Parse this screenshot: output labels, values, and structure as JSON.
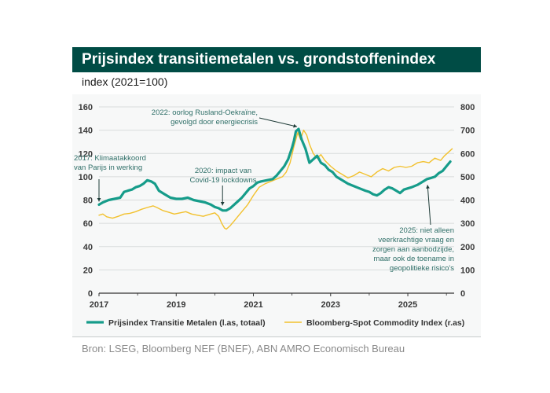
{
  "header": {
    "title": "Prijsindex transitiemetalen vs. grondstoffenindex",
    "subtitle": "index (2021=100)"
  },
  "footer": {
    "source": "Bron: LSEG, Bloomberg NEF (BNEF), ABN AMRO Economisch Bureau"
  },
  "colors": {
    "series_left": "#169c8a",
    "series_right": "#f2c12e",
    "title_bg": "#004c45",
    "annotation": "#2f6f68"
  },
  "chart_data": {
    "type": "line",
    "title": "Prijsindex transitiemetalen vs. grondstoffenindex",
    "ylabel": "index (2021=100)",
    "xlim": [
      2017,
      2026.2
    ],
    "ylim_left": [
      0,
      160
    ],
    "ylim_right": [
      0,
      800
    ],
    "x_ticks": [
      2017,
      2019,
      2021,
      2023,
      2025
    ],
    "x_tick_labels": [
      "2017",
      "2019",
      "2021",
      "2023",
      "2025"
    ],
    "y_left_ticks": [
      0,
      20,
      40,
      60,
      80,
      100,
      120,
      140,
      160
    ],
    "y_left_tick_labels": [
      "0",
      "20",
      "40",
      "60",
      "80",
      "100",
      "120",
      "140",
      "160"
    ],
    "y_right_ticks": [
      0,
      100,
      200,
      300,
      400,
      500,
      600,
      700,
      800
    ],
    "y_right_tick_labels": [
      "0",
      "100",
      "200",
      "300",
      "400",
      "500",
      "600",
      "700",
      "800"
    ],
    "legend_position": "bottom",
    "series": [
      {
        "name": "Prijsindex Transitie Metalen (l.as, totaal)",
        "axis": "left",
        "points": [
          [
            2017.0,
            76
          ],
          [
            2017.1,
            78
          ],
          [
            2017.25,
            80
          ],
          [
            2017.4,
            81
          ],
          [
            2017.55,
            82
          ],
          [
            2017.65,
            87
          ],
          [
            2017.75,
            88
          ],
          [
            2017.85,
            89
          ],
          [
            2017.95,
            91
          ],
          [
            2018.05,
            92
          ],
          [
            2018.15,
            94
          ],
          [
            2018.25,
            97
          ],
          [
            2018.35,
            96
          ],
          [
            2018.45,
            94
          ],
          [
            2018.55,
            88
          ],
          [
            2018.7,
            85
          ],
          [
            2018.85,
            82
          ],
          [
            2019.0,
            81
          ],
          [
            2019.15,
            81
          ],
          [
            2019.3,
            82
          ],
          [
            2019.45,
            80
          ],
          [
            2019.6,
            79
          ],
          [
            2019.75,
            78
          ],
          [
            2019.9,
            76
          ],
          [
            2020.0,
            74
          ],
          [
            2020.1,
            73
          ],
          [
            2020.2,
            71
          ],
          [
            2020.3,
            71
          ],
          [
            2020.4,
            73
          ],
          [
            2020.5,
            76
          ],
          [
            2020.6,
            79
          ],
          [
            2020.7,
            82
          ],
          [
            2020.8,
            86
          ],
          [
            2020.9,
            90
          ],
          [
            2021.0,
            92
          ],
          [
            2021.1,
            95
          ],
          [
            2021.2,
            96
          ],
          [
            2021.35,
            97
          ],
          [
            2021.5,
            98
          ],
          [
            2021.6,
            101
          ],
          [
            2021.7,
            105
          ],
          [
            2021.8,
            109
          ],
          [
            2021.9,
            115
          ],
          [
            2022.0,
            125
          ],
          [
            2022.05,
            131
          ],
          [
            2022.1,
            139
          ],
          [
            2022.17,
            141
          ],
          [
            2022.25,
            132
          ],
          [
            2022.35,
            124
          ],
          [
            2022.45,
            112
          ],
          [
            2022.55,
            115
          ],
          [
            2022.65,
            118
          ],
          [
            2022.75,
            112
          ],
          [
            2022.85,
            110
          ],
          [
            2022.95,
            106
          ],
          [
            2023.05,
            104
          ],
          [
            2023.15,
            100
          ],
          [
            2023.3,
            97
          ],
          [
            2023.45,
            94
          ],
          [
            2023.6,
            92
          ],
          [
            2023.75,
            90
          ],
          [
            2023.9,
            88
          ],
          [
            2024.0,
            87
          ],
          [
            2024.1,
            85
          ],
          [
            2024.2,
            84
          ],
          [
            2024.3,
            86
          ],
          [
            2024.4,
            89
          ],
          [
            2024.5,
            91
          ],
          [
            2024.6,
            90
          ],
          [
            2024.7,
            88
          ],
          [
            2024.8,
            86
          ],
          [
            2024.9,
            89
          ],
          [
            2025.0,
            90
          ],
          [
            2025.1,
            91
          ],
          [
            2025.25,
            93
          ],
          [
            2025.4,
            96
          ],
          [
            2025.5,
            98
          ],
          [
            2025.6,
            99
          ],
          [
            2025.7,
            100
          ],
          [
            2025.8,
            103
          ],
          [
            2025.9,
            105
          ],
          [
            2026.0,
            109
          ],
          [
            2026.1,
            113
          ]
        ]
      },
      {
        "name": "Bloomberg-Spot Commodity Index (r.as)",
        "axis": "right",
        "points": [
          [
            2017.0,
            335
          ],
          [
            2017.1,
            340
          ],
          [
            2017.2,
            328
          ],
          [
            2017.35,
            322
          ],
          [
            2017.5,
            330
          ],
          [
            2017.65,
            340
          ],
          [
            2017.8,
            343
          ],
          [
            2017.95,
            350
          ],
          [
            2018.1,
            360
          ],
          [
            2018.25,
            368
          ],
          [
            2018.4,
            375
          ],
          [
            2018.5,
            368
          ],
          [
            2018.65,
            355
          ],
          [
            2018.8,
            348
          ],
          [
            2018.95,
            340
          ],
          [
            2019.1,
            345
          ],
          [
            2019.25,
            350
          ],
          [
            2019.4,
            340
          ],
          [
            2019.55,
            335
          ],
          [
            2019.7,
            330
          ],
          [
            2019.85,
            338
          ],
          [
            2020.0,
            345
          ],
          [
            2020.1,
            330
          ],
          [
            2020.18,
            300
          ],
          [
            2020.25,
            280
          ],
          [
            2020.3,
            275
          ],
          [
            2020.4,
            290
          ],
          [
            2020.5,
            310
          ],
          [
            2020.6,
            330
          ],
          [
            2020.7,
            350
          ],
          [
            2020.85,
            380
          ],
          [
            2021.0,
            420
          ],
          [
            2021.15,
            455
          ],
          [
            2021.3,
            470
          ],
          [
            2021.45,
            480
          ],
          [
            2021.6,
            490
          ],
          [
            2021.75,
            500
          ],
          [
            2021.85,
            520
          ],
          [
            2021.95,
            560
          ],
          [
            2022.05,
            630
          ],
          [
            2022.15,
            690
          ],
          [
            2022.22,
            660
          ],
          [
            2022.3,
            700
          ],
          [
            2022.38,
            680
          ],
          [
            2022.45,
            640
          ],
          [
            2022.55,
            600
          ],
          [
            2022.65,
            580
          ],
          [
            2022.75,
            595
          ],
          [
            2022.85,
            570
          ],
          [
            2023.0,
            545
          ],
          [
            2023.15,
            525
          ],
          [
            2023.3,
            510
          ],
          [
            2023.45,
            495
          ],
          [
            2023.6,
            505
          ],
          [
            2023.75,
            520
          ],
          [
            2023.9,
            510
          ],
          [
            2024.05,
            500
          ],
          [
            2024.2,
            520
          ],
          [
            2024.35,
            535
          ],
          [
            2024.5,
            525
          ],
          [
            2024.65,
            540
          ],
          [
            2024.8,
            545
          ],
          [
            2024.95,
            540
          ],
          [
            2025.1,
            545
          ],
          [
            2025.25,
            560
          ],
          [
            2025.4,
            565
          ],
          [
            2025.55,
            560
          ],
          [
            2025.7,
            580
          ],
          [
            2025.85,
            570
          ],
          [
            2025.95,
            590
          ],
          [
            2026.05,
            605
          ],
          [
            2026.15,
            620
          ]
        ]
      }
    ],
    "annotations": [
      {
        "id": "ann-2017",
        "lines": [
          "2017: Klimaatakkoord",
          "van Parijs in werking"
        ],
        "x": 2017.0,
        "y": 76,
        "axis": "left"
      },
      {
        "id": "ann-2020",
        "lines": [
          "2020: impact van",
          "Covid-19 lockdowns"
        ],
        "x": 2020.2,
        "y": 72,
        "axis": "left"
      },
      {
        "id": "ann-2022",
        "lines": [
          "2022: oorlog Rusland-Oekraïne,",
          "gevolgd door energiecrisis"
        ],
        "x": 2022.17,
        "y": 141,
        "axis": "left"
      },
      {
        "id": "ann-2025",
        "lines": [
          "2025: niet alleen",
          "veerkrachtige vraag en",
          "zorgen aan aanbodzijde,",
          "maar ook de toename in",
          "geopolitieke risico's"
        ],
        "x": 2025.45,
        "y": 97,
        "axis": "left"
      }
    ]
  }
}
